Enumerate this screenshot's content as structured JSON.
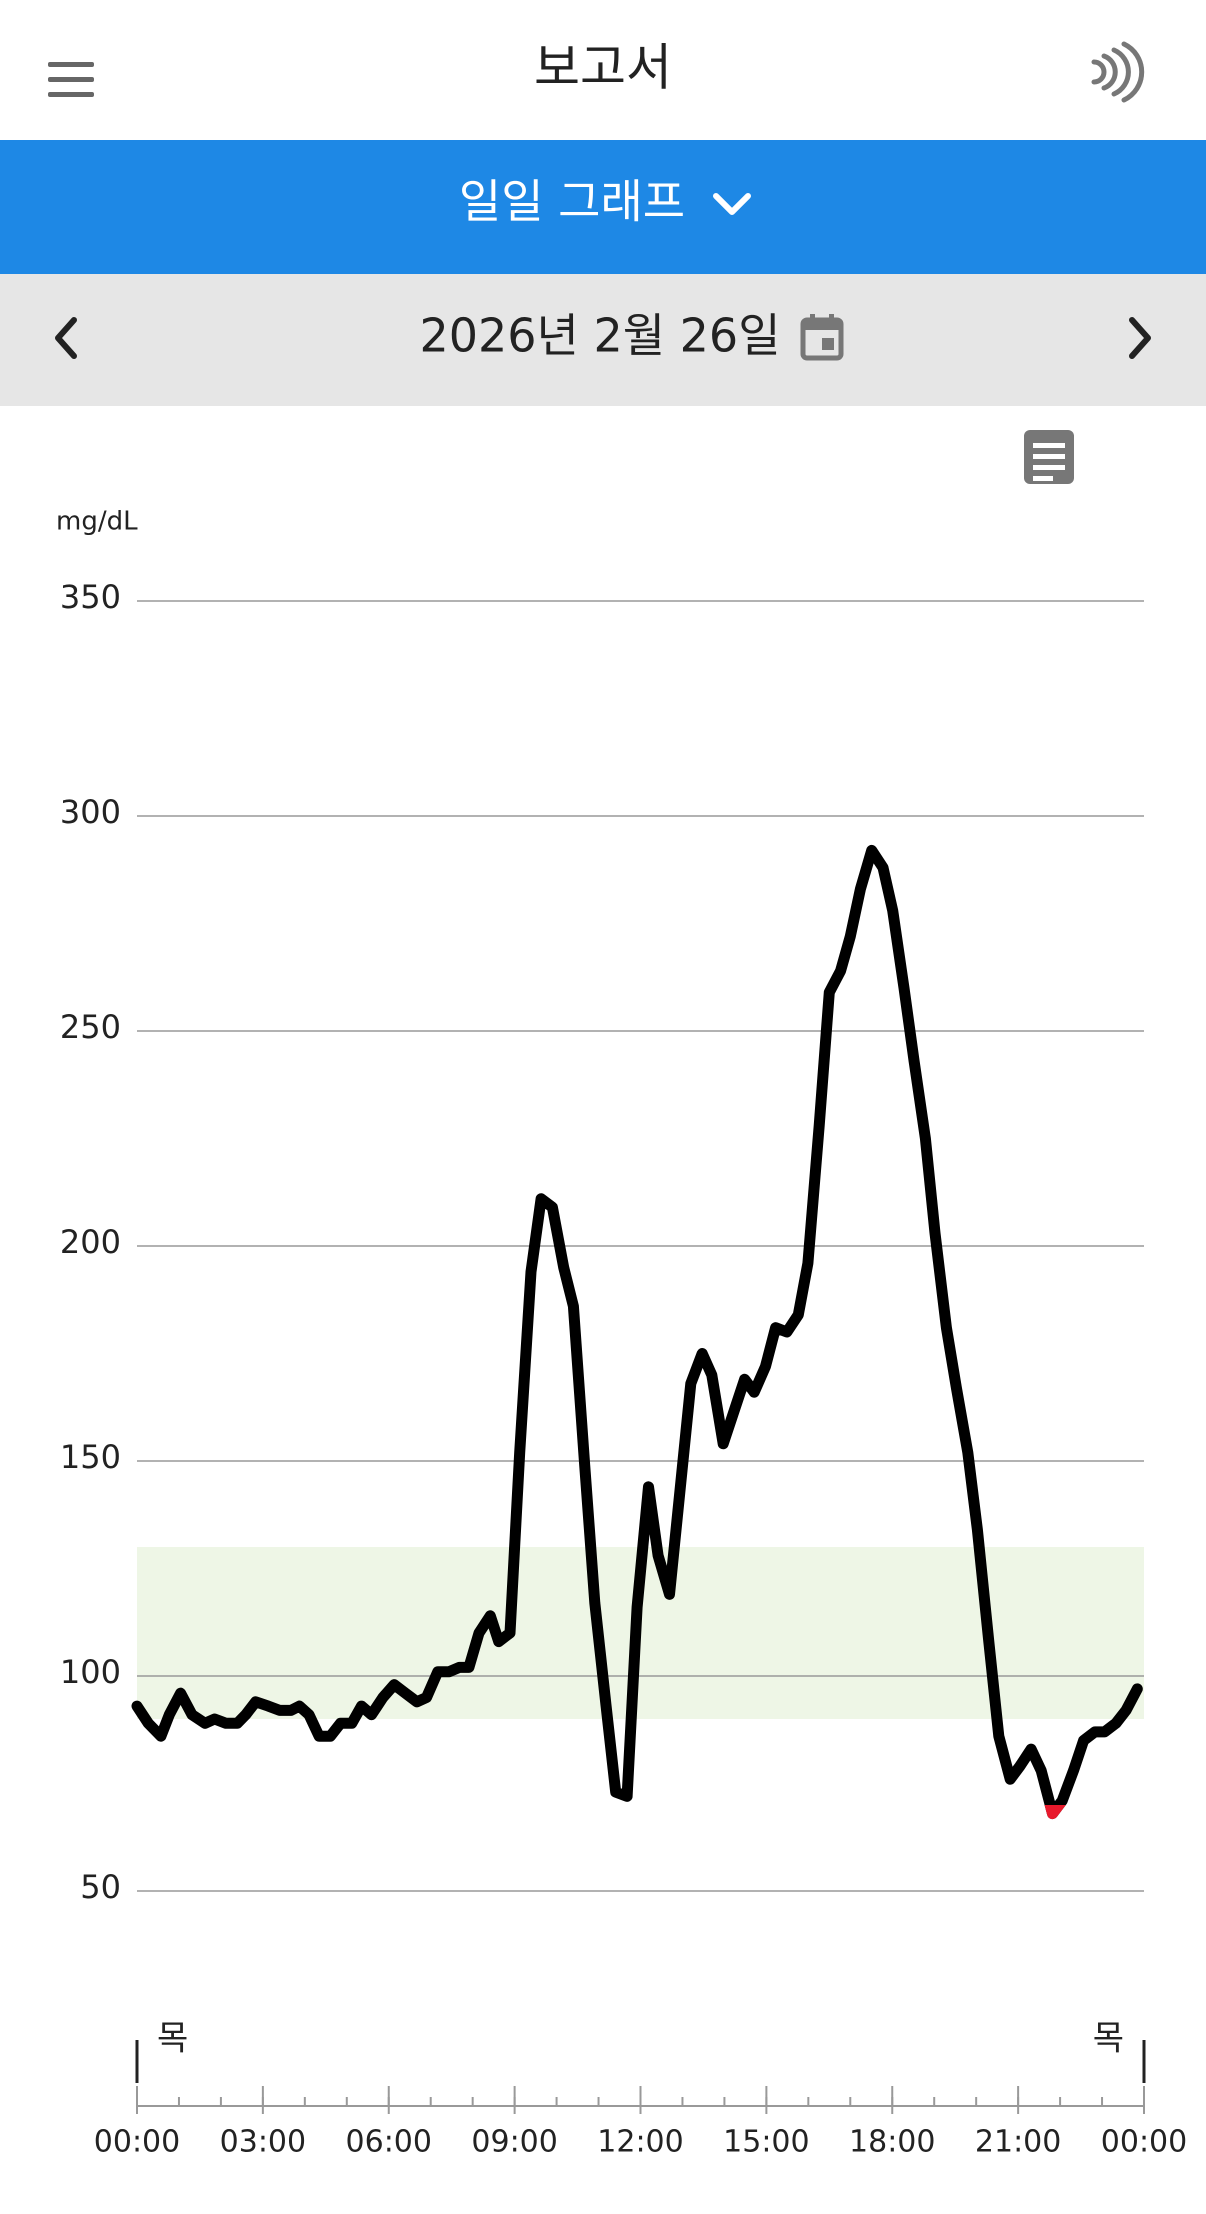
{
  "header": {
    "title": "보고서"
  },
  "tab": {
    "label": "일일 그래프"
  },
  "date_bar": {
    "date": "2026년 2월 26일"
  },
  "chart_data": {
    "type": "line",
    "y_label": "mg/dL",
    "start_day": "목",
    "end_day": "목",
    "xlim": [
      0,
      24
    ],
    "xticks": [
      {
        "value": 0,
        "label": "00:00"
      },
      {
        "value": 3,
        "label": "03:00"
      },
      {
        "value": 6,
        "label": "06:00"
      },
      {
        "value": 9,
        "label": "09:00"
      },
      {
        "value": 12,
        "label": "12:00"
      },
      {
        "value": 15,
        "label": "15:00"
      },
      {
        "value": 18,
        "label": "18:00"
      },
      {
        "value": 21,
        "label": "21:00"
      },
      {
        "value": 24,
        "label": "00:00"
      }
    ],
    "xminorticks": [
      0,
      1,
      2,
      3,
      4,
      5,
      6,
      7,
      8,
      9,
      10,
      11,
      12,
      13,
      14,
      15,
      16,
      17,
      18,
      19,
      20,
      21,
      22,
      23,
      24
    ],
    "ylim": [
      50,
      350
    ],
    "yticks": [
      50,
      100,
      150,
      200,
      250,
      300,
      350
    ],
    "grid": true,
    "target_range": [
      90,
      130
    ],
    "target_color": "#eef6e6",
    "low_limit": 70,
    "low_color": "#e8192c",
    "x": [
      0,
      0.27,
      0.57,
      0.77,
      1.04,
      1.31,
      1.62,
      1.85,
      2.12,
      2.39,
      2.59,
      2.83,
      3.13,
      3.4,
      3.67,
      3.87,
      4.1,
      4.34,
      4.61,
      4.85,
      5.12,
      5.35,
      5.59,
      5.86,
      6.13,
      6.4,
      6.67,
      6.9,
      7.17,
      7.44,
      7.68,
      7.91,
      8.15,
      8.42,
      8.62,
      8.89,
      9.12,
      9.39,
      9.63,
      9.9,
      10.17,
      10.4,
      10.67,
      10.91,
      11.18,
      11.41,
      11.68,
      11.92,
      12.19,
      12.42,
      12.69,
      12.93,
      13.2,
      13.47,
      13.7,
      13.97,
      14.21,
      14.48,
      14.71,
      14.98,
      15.22,
      15.49,
      15.76,
      15.99,
      16.26,
      16.5,
      16.77,
      17.0,
      17.24,
      17.51,
      17.78,
      18.01,
      18.28,
      18.52,
      18.79,
      19.02,
      19.29,
      19.53,
      19.8,
      20.03,
      20.3,
      20.54,
      20.81,
      21.04,
      21.31,
      21.55,
      21.82,
      22.05,
      22.32,
      22.56,
      22.83,
      23.06,
      23.33,
      23.57,
      23.84
    ],
    "series": [
      {
        "color": "#000000",
        "values": [
          93,
          89,
          86,
          91,
          96,
          91,
          89,
          90,
          89,
          89,
          91,
          94,
          93,
          92,
          92,
          93,
          91,
          86,
          86,
          89,
          89,
          93,
          91,
          95,
          98,
          96,
          94,
          95,
          101,
          101,
          102,
          102,
          110,
          114,
          108,
          110,
          152,
          194,
          211,
          209,
          195,
          186,
          149,
          117,
          93,
          73,
          72,
          116,
          144,
          128,
          119,
          142,
          168,
          175,
          170,
          154,
          161,
          169,
          166,
          172,
          181,
          180,
          184,
          196,
          228,
          259,
          264,
          272,
          283,
          292,
          288,
          278,
          260,
          243,
          225,
          203,
          181,
          167,
          152,
          134,
          108,
          86,
          76,
          79,
          83,
          78,
          68,
          71,
          78,
          85,
          87,
          87,
          89,
          92,
          97
        ]
      }
    ]
  }
}
